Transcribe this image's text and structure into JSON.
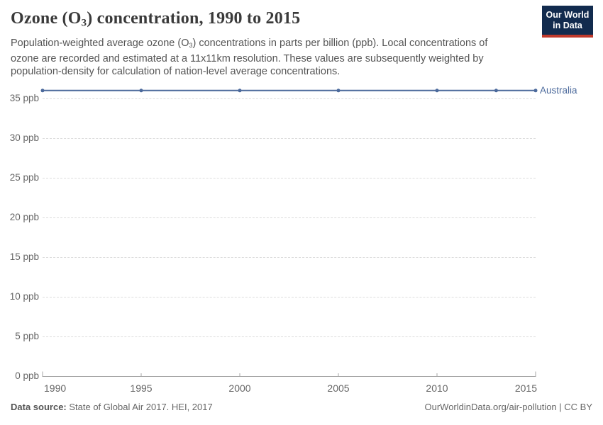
{
  "header": {
    "title_pre": "Ozone (O",
    "title_sub": "3",
    "title_post": ") concentration, 1990 to 2015",
    "subtitle_pre": "Population-weighted average ozone (O",
    "subtitle_sub": "3",
    "subtitle_post": ") concentrations in parts per billion (ppb). Local concentrations of ozone are recorded and estimated at a 11x11km resolution. These values are subsequently weighted by population-density for calculation of nation-level average concentrations."
  },
  "logo": {
    "line1": "Our World",
    "line2": "in Data",
    "bg_color": "#122B4E",
    "bar_color": "#C0392B"
  },
  "chart_data": {
    "type": "line",
    "title": "Ozone (O3) concentration, 1990 to 2015",
    "xlabel": "",
    "ylabel": "ppb",
    "xlim": [
      1990,
      2015
    ],
    "ylim": [
      0,
      35
    ],
    "grid": "horizontal-dashed",
    "legend_position": "right-of-line",
    "x": [
      1990,
      1995,
      2000,
      2005,
      2010,
      2013,
      2015
    ],
    "series": [
      {
        "name": "Australia",
        "color": "#4C6A9C",
        "values": [
          36,
          36,
          36,
          36,
          36,
          36,
          36
        ]
      }
    ],
    "yticks": [
      {
        "value": 0,
        "label": "0 ppb"
      },
      {
        "value": 5,
        "label": "5 ppb"
      },
      {
        "value": 10,
        "label": "10 ppb"
      },
      {
        "value": 15,
        "label": "15 ppb"
      },
      {
        "value": 20,
        "label": "20 ppb"
      },
      {
        "value": 25,
        "label": "25 ppb"
      },
      {
        "value": 30,
        "label": "30 ppb"
      },
      {
        "value": 35,
        "label": "35 ppb"
      }
    ],
    "xticks": [
      {
        "value": 1990,
        "label": "1990",
        "align": "start"
      },
      {
        "value": 1995,
        "label": "1995",
        "align": "middle"
      },
      {
        "value": 2000,
        "label": "2000",
        "align": "middle"
      },
      {
        "value": 2005,
        "label": "2005",
        "align": "middle"
      },
      {
        "value": 2010,
        "label": "2010",
        "align": "middle"
      },
      {
        "value": 2015,
        "label": "2015",
        "align": "end"
      }
    ],
    "axis_color": "#a5a5a5",
    "gridline_color": "#dcdcdc"
  },
  "footer": {
    "source_label": "Data source:",
    "source_text": " State of Global Air 2017. HEI, 2017",
    "right_text": "OurWorldinData.org/air-pollution | CC BY"
  }
}
